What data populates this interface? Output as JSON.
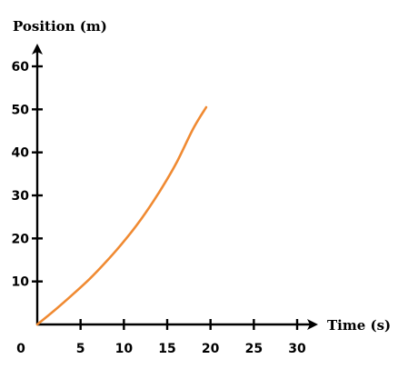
{
  "chart_data": {
    "type": "line",
    "xlabel": "Time (s)",
    "ylabel": "Position (m)",
    "xlim": [
      0,
      30
    ],
    "ylim": [
      0,
      60
    ],
    "x_ticks": [
      5,
      10,
      15,
      20,
      25,
      30
    ],
    "y_ticks": [
      10,
      20,
      30,
      40,
      50,
      60
    ],
    "origin_label": "0",
    "grid": false,
    "series": [
      {
        "color": "#f08a32",
        "x": [
          0,
          2,
          4,
          6,
          8,
          10,
          12,
          14,
          16,
          18,
          19.5
        ],
        "y": [
          0,
          3.3,
          6.8,
          10.5,
          14.7,
          19.3,
          24.5,
          30.5,
          37.3,
          45.5,
          50.5
        ]
      }
    ]
  }
}
